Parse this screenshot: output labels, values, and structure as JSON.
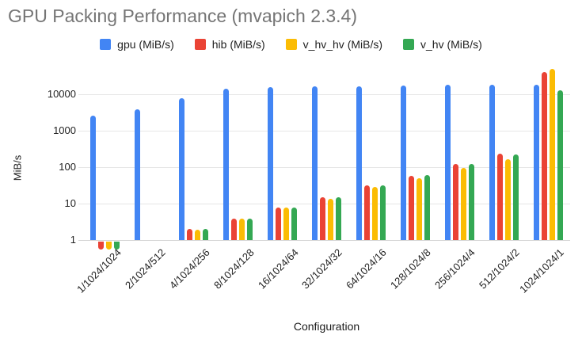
{
  "title": "GPU Packing Performance (mvapich 2.3.4)",
  "colors": {
    "background": "#ffffff",
    "title_text": "#757575",
    "tick_text": "#222222",
    "legend_text": "#222222",
    "axis_title_text": "#1a1a1a",
    "gridline": "#e6e6e6",
    "baseline": "#d5d5d5",
    "series_blue": "#4285f4",
    "series_red": "#ea4335",
    "series_yellow": "#fbbc04",
    "series_green": "#34a853"
  },
  "chart_data": {
    "type": "bar",
    "title": "GPU Packing Performance (mvapich 2.3.4)",
    "xlabel": "Configuration",
    "ylabel": "MiB/s",
    "scale": "log",
    "grid": true,
    "legend_position": "top",
    "y_ticks": [
      1,
      10,
      100,
      1000,
      10000
    ],
    "ylim": [
      0.5,
      50000
    ],
    "categories": [
      "1/1024/1024",
      "2/1024/512",
      "4/1024/256",
      "8/1024/128",
      "16/1024/64",
      "32/1024/32",
      "64/1024/16",
      "128/1024/8",
      "256/1024/4",
      "512/1024/2",
      "1024/1024/1"
    ],
    "series": [
      {
        "name": "gpu (MiB/s)",
        "color": "#4285f4",
        "values": [
          2600,
          3900,
          7700,
          14000,
          16000,
          16500,
          16500,
          17000,
          18000,
          18000,
          18000
        ]
      },
      {
        "name": "hib (MiB/s)",
        "color": "#ea4335",
        "values": [
          0.6,
          null,
          2,
          3.9,
          7.8,
          15,
          31,
          58,
          120,
          235,
          40000
        ]
      },
      {
        "name": "v_hv_hv (MiB/s)",
        "color": "#fbbc04",
        "values": [
          0.6,
          null,
          1.9,
          3.8,
          7.7,
          13.7,
          28,
          50,
          97,
          165,
          50000
        ]
      },
      {
        "name": "v_hv (MiB/s)",
        "color": "#34a853",
        "values": [
          0.6,
          null,
          2,
          3.9,
          7.7,
          15,
          31,
          60,
          122,
          225,
          13000
        ]
      }
    ]
  }
}
